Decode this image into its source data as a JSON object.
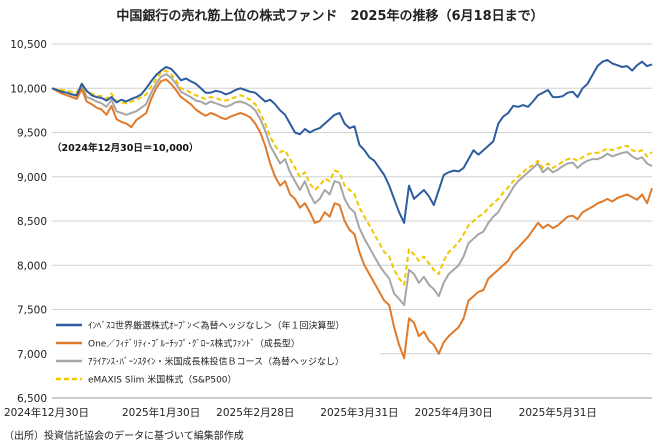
{
  "chart_data": {
    "type": "line",
    "title": "中国銀行の売れ筋上位の株式ファンド　2025年の推移（6月18日まで）",
    "subtitle": "（2024年12月30日＝10,000）",
    "source": "（出所）投資信託協会のデータに基づいて編集部作成",
    "xlabel": "",
    "ylabel": "",
    "ylim": [
      6500,
      10500
    ],
    "grid": true,
    "legend_position": "bottom-left",
    "y_ticks": [
      "6,500",
      "7,000",
      "7,500",
      "8,000",
      "8,500",
      "9,000",
      "9,500",
      "10,000",
      "10,500"
    ],
    "x_ticks": [
      "2024年12月30日",
      "2025年1月30日",
      "2025年2月28日",
      "2025年3月31日",
      "2025年4月30日",
      "2025年5月31日"
    ],
    "x_tick_index": [
      0,
      22,
      41,
      62,
      81,
      102
    ],
    "series": [
      {
        "name": "ｲﾝﾍﾞｽｺ世界厳選株式ｵｰﾌﾟﾝ＜為替ヘッジなし＞（年１回決算型）",
        "color": "#2e5d9f",
        "dash": "",
        "values": [
          10000,
          9980,
          9960,
          9950,
          9930,
          9920,
          10050,
          9970,
          9920,
          9900,
          9890,
          9860,
          9900,
          9840,
          9870,
          9850,
          9880,
          9900,
          9930,
          10000,
          10080,
          10150,
          10200,
          10240,
          10220,
          10160,
          10090,
          10110,
          10080,
          10050,
          10000,
          9950,
          9950,
          9970,
          9960,
          9930,
          9950,
          9980,
          10000,
          9980,
          9960,
          9950,
          9900,
          9850,
          9870,
          9820,
          9750,
          9700,
          9600,
          9500,
          9480,
          9540,
          9500,
          9530,
          9550,
          9600,
          9650,
          9700,
          9720,
          9600,
          9550,
          9570,
          9360,
          9300,
          9220,
          9180,
          9100,
          9020,
          8900,
          8750,
          8600,
          8480,
          8900,
          8750,
          8800,
          8850,
          8780,
          8680,
          8850,
          9020,
          9050,
          9070,
          9060,
          9100,
          9200,
          9300,
          9250,
          9300,
          9350,
          9400,
          9600,
          9680,
          9720,
          9800,
          9790,
          9810,
          9790,
          9850,
          9920,
          9950,
          9980,
          9900,
          9900,
          9910,
          9950,
          9960,
          9900,
          10000,
          10050,
          10150,
          10250,
          10300,
          10320,
          10280,
          10260,
          10240,
          10250,
          10200,
          10260,
          10300,
          10250,
          10270
        ]
      },
      {
        "name": "One／ﾌｨﾃﾞﾘﾃｨ･ﾌﾞﾙｰﾁｯﾌﾟ･ｸﾞﾛｰｽ株式ﾌｧﾝﾄﾞ（成長型）",
        "color": "#e07a2b",
        "dash": "",
        "values": [
          10000,
          9970,
          9940,
          9920,
          9900,
          9880,
          9990,
          9850,
          9820,
          9780,
          9760,
          9700,
          9800,
          9650,
          9620,
          9600,
          9560,
          9640,
          9680,
          9720,
          9880,
          10000,
          10080,
          10100,
          10050,
          9980,
          9900,
          9860,
          9820,
          9760,
          9720,
          9690,
          9720,
          9700,
          9670,
          9650,
          9680,
          9700,
          9720,
          9700,
          9670,
          9600,
          9500,
          9350,
          9150,
          9000,
          8900,
          8950,
          8800,
          8750,
          8650,
          8700,
          8600,
          8480,
          8500,
          8600,
          8550,
          8700,
          8680,
          8500,
          8400,
          8350,
          8150,
          8000,
          7900,
          7800,
          7700,
          7600,
          7550,
          7300,
          7100,
          6950,
          7400,
          7350,
          7200,
          7250,
          7150,
          7100,
          7000,
          7130,
          7200,
          7250,
          7300,
          7400,
          7600,
          7650,
          7700,
          7720,
          7850,
          7900,
          7950,
          8000,
          8050,
          8150,
          8200,
          8260,
          8320,
          8400,
          8480,
          8420,
          8460,
          8420,
          8450,
          8500,
          8550,
          8560,
          8520,
          8600,
          8630,
          8660,
          8700,
          8720,
          8750,
          8720,
          8760,
          8780,
          8800,
          8770,
          8740,
          8800,
          8700,
          8870
        ]
      },
      {
        "name": "ｱﾗｲｱﾝｽ･ﾊﾞｰﾝｽﾀｲﾝ・米国成長株投信Ｂコース（為替ヘッジなし）",
        "color": "#a6a6a6",
        "dash": "",
        "values": [
          10000,
          9980,
          9960,
          9950,
          9930,
          9910,
          10030,
          9900,
          9880,
          9850,
          9830,
          9790,
          9870,
          9740,
          9720,
          9700,
          9720,
          9740,
          9780,
          9820,
          9950,
          10050,
          10130,
          10160,
          10120,
          10050,
          9960,
          9930,
          9900,
          9860,
          9850,
          9820,
          9850,
          9830,
          9810,
          9790,
          9810,
          9840,
          9850,
          9830,
          9800,
          9750,
          9650,
          9520,
          9350,
          9250,
          9150,
          9200,
          9050,
          8950,
          8850,
          8950,
          8800,
          8700,
          8750,
          8850,
          8800,
          8950,
          8930,
          8750,
          8650,
          8600,
          8420,
          8300,
          8200,
          8100,
          8000,
          7920,
          7850,
          7680,
          7620,
          7550,
          7950,
          7900,
          7800,
          7870,
          7780,
          7730,
          7650,
          7800,
          7900,
          7950,
          8000,
          8100,
          8250,
          8300,
          8350,
          8380,
          8480,
          8550,
          8600,
          8700,
          8780,
          8880,
          8950,
          9000,
          9050,
          9100,
          9150,
          9050,
          9100,
          9050,
          9080,
          9120,
          9150,
          9160,
          9100,
          9150,
          9180,
          9200,
          9200,
          9220,
          9260,
          9230,
          9250,
          9270,
          9280,
          9230,
          9200,
          9220,
          9150,
          9120
        ]
      },
      {
        "name": "eMAXIS Slim 米国株式（S&P500）",
        "color": "#f2c700",
        "dash": "5,3",
        "values": [
          10000,
          9990,
          9980,
          9970,
          9960,
          9950,
          10050,
          9960,
          9940,
          9920,
          9910,
          9880,
          9940,
          9850,
          9840,
          9830,
          9850,
          9870,
          9900,
          9930,
          10020,
          10100,
          10180,
          10200,
          10160,
          10090,
          10000,
          9980,
          9950,
          9920,
          9900,
          9880,
          9900,
          9890,
          9870,
          9860,
          9880,
          9900,
          9920,
          9900,
          9870,
          9820,
          9720,
          9600,
          9450,
          9350,
          9280,
          9300,
          9200,
          9100,
          9000,
          9050,
          8920,
          8850,
          8900,
          8980,
          8950,
          9070,
          9050,
          8900,
          8850,
          8800,
          8650,
          8550,
          8450,
          8350,
          8250,
          8150,
          8100,
          7950,
          7850,
          7780,
          8180,
          8120,
          8050,
          8100,
          8020,
          7950,
          7900,
          8050,
          8150,
          8200,
          8260,
          8350,
          8450,
          8500,
          8550,
          8580,
          8650,
          8700,
          8750,
          8820,
          8880,
          8950,
          9000,
          9050,
          9100,
          9130,
          9180,
          9100,
          9150,
          9100,
          9130,
          9170,
          9200,
          9210,
          9180,
          9220,
          9250,
          9270,
          9270,
          9290,
          9320,
          9300,
          9320,
          9340,
          9350,
          9300,
          9280,
          9300,
          9230,
          9280
        ]
      }
    ]
  }
}
